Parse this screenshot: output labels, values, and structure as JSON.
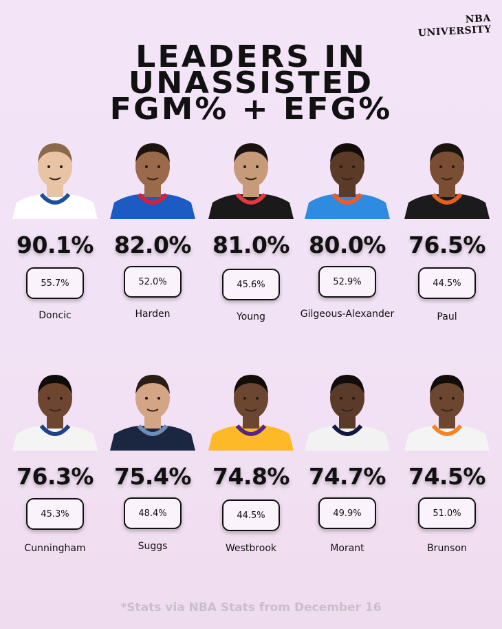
{
  "brand": "NBA UNIVERSITY",
  "title_lines": [
    "LEADERS IN",
    "UNASSISTED",
    "FGM% + EFG%"
  ],
  "players": [
    {
      "name": "Doncic",
      "unassisted_fgm": "90.1%",
      "efg": "55.7%",
      "jersey_color": "#ffffff",
      "trim_color": "#1d4f9c"
    },
    {
      "name": "Harden",
      "unassisted_fgm": "82.0%",
      "efg": "52.0%",
      "jersey_color": "#1d5bc4",
      "trim_color": "#d4213b"
    },
    {
      "name": "Young",
      "unassisted_fgm": "81.0%",
      "efg": "45.6%",
      "jersey_color": "#1a1a1a",
      "trim_color": "#e03a3e"
    },
    {
      "name": "Gilgeous-Alexander",
      "unassisted_fgm": "80.0%",
      "efg": "52.9%",
      "jersey_color": "#2f8be0",
      "trim_color": "#f15a29"
    },
    {
      "name": "Paul",
      "unassisted_fgm": "76.5%",
      "efg": "44.5%",
      "jersey_color": "#1b1b1b",
      "trim_color": "#e56020"
    },
    {
      "name": "Cunningham",
      "unassisted_fgm": "76.3%",
      "efg": "45.3%",
      "jersey_color": "#f4f4f4",
      "trim_color": "#1d428a"
    },
    {
      "name": "Suggs",
      "unassisted_fgm": "75.4%",
      "efg": "48.4%",
      "jersey_color": "#1b2740",
      "trim_color": "#6e8fb5"
    },
    {
      "name": "Westbrook",
      "unassisted_fgm": "74.8%",
      "efg": "44.5%",
      "jersey_color": "#fdb927",
      "trim_color": "#552583"
    },
    {
      "name": "Morant",
      "unassisted_fgm": "74.7%",
      "efg": "49.9%",
      "jersey_color": "#f2f2f2",
      "trim_color": "#12173f"
    },
    {
      "name": "Brunson",
      "unassisted_fgm": "74.5%",
      "efg": "51.0%",
      "jersey_color": "#f4f4f4",
      "trim_color": "#f58426"
    }
  ],
  "footer": "*Stats via NBA Stats from December 16"
}
